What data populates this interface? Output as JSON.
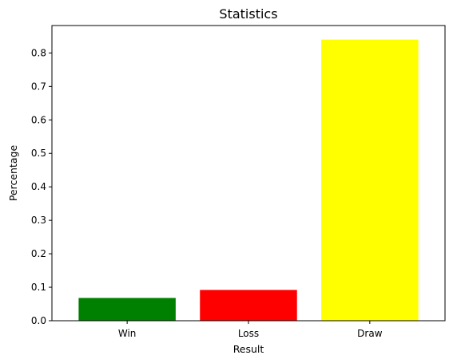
{
  "chart_data": {
    "type": "bar",
    "title": "Statistics",
    "xlabel": "Result",
    "ylabel": "Percentage",
    "categories": [
      "Win",
      "Loss",
      "Draw"
    ],
    "values": [
      0.068,
      0.092,
      0.84
    ],
    "colors": [
      "#008000",
      "#ff0000",
      "#ffff00"
    ],
    "ylim": [
      0,
      0.882
    ],
    "yticks": [
      0.0,
      0.1,
      0.2,
      0.3,
      0.4,
      0.5,
      0.6,
      0.7,
      0.8
    ],
    "ytick_labels": [
      "0.0",
      "0.1",
      "0.2",
      "0.3",
      "0.4",
      "0.5",
      "0.6",
      "0.7",
      "0.8"
    ],
    "grid": false,
    "legend": "none"
  }
}
